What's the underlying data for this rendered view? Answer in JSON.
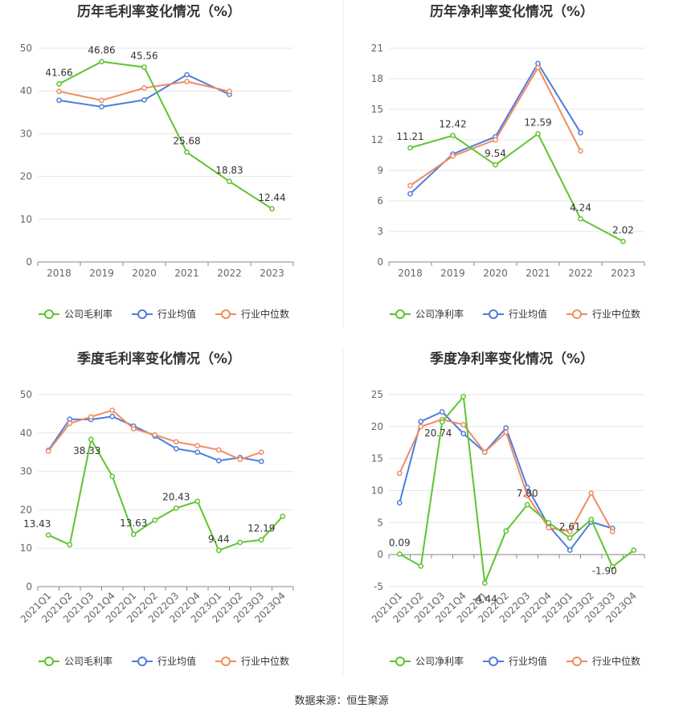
{
  "source_label": "数据来源：恒生聚源",
  "series_colors": {
    "company": "#5ec42f",
    "industry_avg": "#4d7de0",
    "industry_median": "#f28a60"
  },
  "chart_data": [
    {
      "type": "line",
      "title": "历年毛利率变化情况（%）",
      "categories": [
        "2018",
        "2019",
        "2020",
        "2021",
        "2022",
        "2023"
      ],
      "ylim": [
        0,
        50
      ],
      "yticks": [
        0,
        10,
        20,
        30,
        40,
        50
      ],
      "grid": true,
      "legend_position": "bottom",
      "series": [
        {
          "name": "公司毛利率",
          "key": "company",
          "values": [
            41.66,
            46.86,
            45.56,
            25.68,
            18.83,
            12.44
          ],
          "labels": [
            "41.66",
            "46.86",
            "45.56",
            "25.68",
            "18.83",
            "12.44"
          ]
        },
        {
          "name": "行业均值",
          "key": "industry_avg",
          "values": [
            37.8,
            36.3,
            37.9,
            43.8,
            39.2,
            null
          ]
        },
        {
          "name": "行业中位数",
          "key": "industry_median",
          "values": [
            39.9,
            37.8,
            40.7,
            42.2,
            39.9,
            null
          ]
        }
      ]
    },
    {
      "type": "line",
      "title": "历年净利率变化情况（%）",
      "categories": [
        "2018",
        "2019",
        "2020",
        "2021",
        "2022",
        "2023"
      ],
      "ylim": [
        0,
        21
      ],
      "yticks": [
        0,
        3,
        6,
        9,
        12,
        15,
        18,
        21
      ],
      "grid": true,
      "legend_position": "bottom",
      "series": [
        {
          "name": "公司净利率",
          "key": "company",
          "values": [
            11.21,
            12.42,
            9.54,
            12.59,
            4.24,
            2.02
          ],
          "labels": [
            "11.21",
            "12.42",
            "9.54",
            "12.59",
            "4.24",
            "2.02"
          ]
        },
        {
          "name": "行业均值",
          "key": "industry_avg",
          "values": [
            6.7,
            10.6,
            12.3,
            19.5,
            12.7,
            null
          ]
        },
        {
          "name": "行业中位数",
          "key": "industry_median",
          "values": [
            7.5,
            10.4,
            12.0,
            19.1,
            10.9,
            null
          ]
        }
      ]
    },
    {
      "type": "line",
      "title": "季度毛利率变化情况（%）",
      "categories": [
        "2021Q1",
        "2021Q2",
        "2021Q3",
        "2021Q4",
        "2022Q1",
        "2022Q2",
        "2022Q3",
        "2022Q4",
        "2023Q1",
        "2023Q2",
        "2023Q3",
        "2023Q4"
      ],
      "ylim": [
        0,
        50
      ],
      "yticks": [
        0,
        10,
        20,
        30,
        40,
        50
      ],
      "grid": true,
      "legend_position": "bottom",
      "series": [
        {
          "name": "公司毛利率",
          "key": "company",
          "values": [
            13.43,
            10.9,
            38.33,
            28.7,
            13.63,
            17.3,
            20.43,
            22.2,
            9.44,
            11.5,
            12.19,
            18.3
          ],
          "labels": [
            "13.43",
            null,
            "38.33",
            null,
            "13.63",
            null,
            "20.43",
            null,
            "9.44",
            null,
            "12.19",
            null
          ]
        },
        {
          "name": "行业均值",
          "key": "industry_avg",
          "values": [
            35.5,
            43.6,
            43.5,
            44.3,
            41.8,
            39.2,
            35.9,
            35.0,
            32.8,
            33.6,
            32.6,
            null
          ]
        },
        {
          "name": "行业中位数",
          "key": "industry_median",
          "values": [
            35.3,
            42.5,
            44.2,
            45.9,
            41.1,
            39.5,
            37.7,
            36.7,
            35.6,
            33.1,
            35.0,
            null
          ]
        }
      ]
    },
    {
      "type": "line",
      "title": "季度净利率变化情况（%）",
      "categories": [
        "2021Q1",
        "2021Q2",
        "2021Q3",
        "2021Q4",
        "2022Q1",
        "2022Q2",
        "2022Q3",
        "2022Q4",
        "2023Q1",
        "2023Q2",
        "2023Q3",
        "2023Q4"
      ],
      "ylim": [
        -5,
        25
      ],
      "yticks": [
        -5,
        0,
        5,
        10,
        15,
        20,
        25
      ],
      "grid": true,
      "legend_position": "bottom",
      "series": [
        {
          "name": "公司净利率",
          "key": "company",
          "values": [
            0.09,
            -1.8,
            20.74,
            24.7,
            -4.44,
            3.7,
            7.8,
            5.0,
            2.61,
            5.5,
            -1.9,
            0.7
          ],
          "labels": [
            "0.09",
            null,
            "20.74",
            null,
            "-4.44",
            null,
            "7.80",
            null,
            "2.61",
            null,
            "-1.90",
            null
          ]
        },
        {
          "name": "行业均值",
          "key": "industry_avg",
          "values": [
            8.1,
            20.8,
            22.3,
            18.9,
            16.0,
            19.8,
            10.5,
            4.5,
            0.7,
            5.1,
            4.1,
            null
          ]
        },
        {
          "name": "行业中位数",
          "key": "industry_median",
          "values": [
            12.7,
            20.0,
            21.1,
            20.3,
            16.0,
            19.1,
            9.2,
            4.2,
            3.6,
            9.6,
            3.6,
            null
          ]
        }
      ]
    }
  ]
}
